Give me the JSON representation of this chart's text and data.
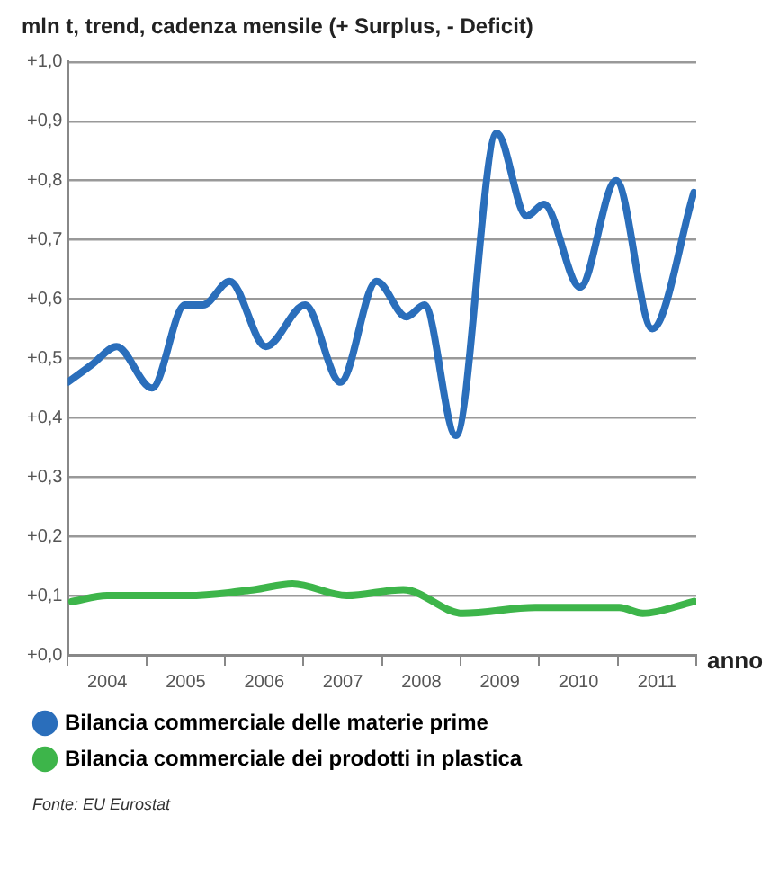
{
  "chart_data": {
    "type": "line",
    "title": "mln t, trend, cadenza mensile (+ Surplus, - Deficit)",
    "xlabel": "anno",
    "annotations": [
      "Fonte: EU Eurostat"
    ],
    "xlim": [
      2004,
      2012
    ],
    "xticks": [
      {
        "value": 2004,
        "label": null
      },
      {
        "value": 2004.5,
        "label": "2004"
      },
      {
        "value": 2005,
        "label": null
      },
      {
        "value": 2005.5,
        "label": "2005"
      },
      {
        "value": 2006,
        "label": null
      },
      {
        "value": 2006.5,
        "label": "2006"
      },
      {
        "value": 2007,
        "label": null
      },
      {
        "value": 2007.5,
        "label": "2007"
      },
      {
        "value": 2008,
        "label": null
      },
      {
        "value": 2008.5,
        "label": "2008"
      },
      {
        "value": 2009,
        "label": null
      },
      {
        "value": 2009.5,
        "label": "2009"
      },
      {
        "value": 2010,
        "label": null
      },
      {
        "value": 2010.5,
        "label": "2010"
      },
      {
        "value": 2011,
        "label": null
      },
      {
        "value": 2011.5,
        "label": "2011"
      },
      {
        "value": 2012,
        "label": null
      }
    ],
    "ylim": [
      0,
      1
    ],
    "yticks": [
      {
        "value": 0,
        "label": "+0,0"
      },
      {
        "value": 0.1,
        "label": "+0,1"
      },
      {
        "value": 0.2,
        "label": "+0,2"
      },
      {
        "value": 0.3,
        "label": "+0,3"
      },
      {
        "value": 0.4,
        "label": "+0,4"
      },
      {
        "value": 0.5,
        "label": "+0,5"
      },
      {
        "value": 0.6,
        "label": "+0,6"
      },
      {
        "value": 0.7,
        "label": "+0,7"
      },
      {
        "value": 0.8,
        "label": "+0,8"
      },
      {
        "value": 0.9,
        "label": "+0,9"
      },
      {
        "value": 1,
        "label": "+1,0"
      }
    ],
    "grid": "y",
    "legend": "bottom",
    "marker": "none",
    "line_style": "solid",
    "series": [
      {
        "name": "Bilancia commerciale delle materie prime",
        "color": "#2a6ebb",
        "x": [
          2004.0,
          2004.31,
          2004.62,
          2005.07,
          2005.49,
          2005.72,
          2006.06,
          2006.52,
          2007.02,
          2007.47,
          2007.93,
          2008.31,
          2008.54,
          2008.94,
          2009.46,
          2009.84,
          2010.06,
          2010.52,
          2010.98,
          2011.44,
          2011.97
        ],
        "values": [
          0.46,
          0.49,
          0.52,
          0.45,
          0.59,
          0.59,
          0.63,
          0.52,
          0.59,
          0.46,
          0.63,
          0.57,
          0.59,
          0.37,
          0.88,
          0.74,
          0.76,
          0.62,
          0.8,
          0.55,
          0.78
        ]
      },
      {
        "name": "Bilancia commerciale dei prodotti in plastica",
        "color": "#3db54a",
        "x": [
          2004.05,
          2004.5,
          2005.53,
          2006.37,
          2006.86,
          2007.55,
          2008.27,
          2009.03,
          2009.95,
          2011.02,
          2011.32,
          2011.97
        ],
        "values": [
          0.09,
          0.1,
          0.1,
          0.11,
          0.12,
          0.1,
          0.11,
          0.07,
          0.08,
          0.08,
          0.07,
          0.09
        ]
      }
    ]
  }
}
